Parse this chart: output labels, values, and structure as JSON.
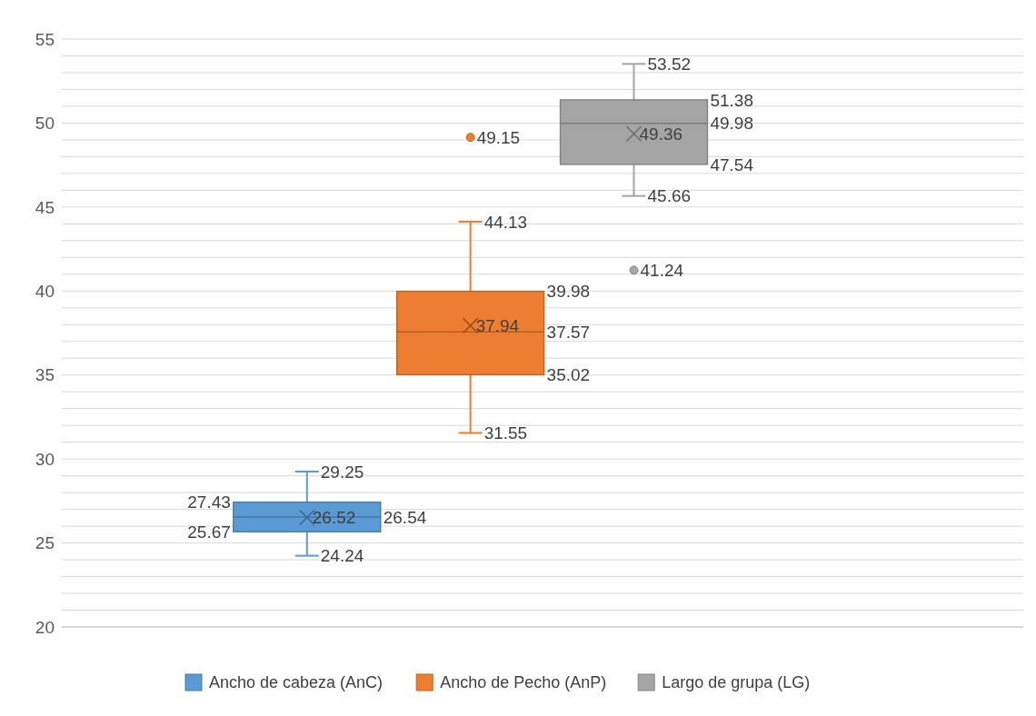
{
  "chart_data": {
    "type": "box",
    "categories": [
      null
    ],
    "ylim": [
      20,
      55
    ],
    "yticks": [
      20,
      {
        "value": 21,
        "label": null
      },
      {
        "value": 22,
        "label": null
      },
      {
        "value": 23,
        "label": null
      },
      {
        "value": 24,
        "label": null
      },
      25,
      {
        "value": 26,
        "label": null
      },
      {
        "value": 27,
        "label": null
      },
      {
        "value": 28,
        "label": null
      },
      {
        "value": 29,
        "label": null
      },
      30,
      {
        "value": 31,
        "label": null
      },
      {
        "value": 32,
        "label": null
      },
      {
        "value": 33,
        "label": null
      },
      {
        "value": 34,
        "label": null
      },
      35,
      {
        "value": 36,
        "label": null
      },
      {
        "value": 37,
        "label": null
      },
      {
        "value": 38,
        "label": null
      },
      {
        "value": 39,
        "label": null
      },
      40,
      {
        "value": 41,
        "label": null
      },
      {
        "value": 42,
        "label": null
      },
      {
        "value": 43,
        "label": null
      },
      {
        "value": 44,
        "label": null
      },
      45,
      {
        "value": 46,
        "label": null
      },
      {
        "value": 47,
        "label": null
      },
      {
        "value": 48,
        "label": null
      },
      {
        "value": 49,
        "label": null
      },
      50,
      {
        "value": 51,
        "label": null
      },
      {
        "value": 52,
        "label": null
      },
      {
        "value": 53,
        "label": null
      },
      {
        "value": 54,
        "label": null
      },
      55
    ],
    "grid": "y",
    "legend": "bottom",
    "tick_labels": "y",
    "series": [
      {
        "name": "Ancho de cabeza (AnC)",
        "color": "#5b9bd5",
        "boxes": [
          {
            "low": 24.24,
            "q1": 25.67,
            "median": 26.54,
            "q3": 27.43,
            "high": 29.25,
            "mean": 26.52
          }
        ]
      },
      {
        "name": "Ancho de Pecho (AnP)",
        "color": "#ed7d31",
        "boxes": [
          {
            "low": 31.55,
            "q1": 35.02,
            "median": 37.57,
            "q3": 39.98,
            "high": 44.13,
            "mean": 37.94,
            "outliers": [
              49.15
            ]
          }
        ]
      },
      {
        "name": "Largo de grupa (LG)",
        "color": "#a5a5a5",
        "boxes": [
          {
            "low": 45.66,
            "q1": 47.54,
            "median": 49.98,
            "q3": 51.38,
            "high": 53.52,
            "mean": 49.36,
            "outliers": [
              41.24
            ]
          }
        ]
      }
    ],
    "annotations": [
      "29.25",
      "27.43",
      "26.54",
      "25.67",
      "24.24",
      "26.52",
      "44.13",
      "39.98",
      "37.57",
      "35.02",
      "31.55",
      "37.94",
      "49.15",
      "53.52",
      "51.38",
      "49.98",
      "47.54",
      "45.66",
      "49.36",
      "41.24"
    ]
  }
}
